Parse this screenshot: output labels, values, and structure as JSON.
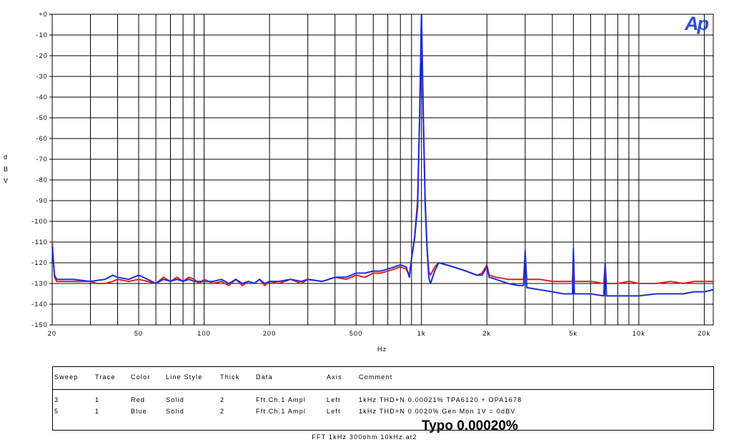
{
  "chart_data": {
    "type": "line",
    "xlabel": "Hz",
    "ylabel": "dBV",
    "xscale": "log",
    "xlim": [
      20,
      22000
    ],
    "ylim": [
      -150,
      0
    ],
    "grid": true,
    "yticks": [
      "+0",
      "-10",
      "-20",
      "-30",
      "-40",
      "-50",
      "-60",
      "-70",
      "-80",
      "-90",
      "-100",
      "-110",
      "-120",
      "-130",
      "-140",
      "-150"
    ],
    "xticks": [
      {
        "value": 20,
        "label": "20"
      },
      {
        "value": 50,
        "label": "50"
      },
      {
        "value": 100,
        "label": "100"
      },
      {
        "value": 200,
        "label": "200"
      },
      {
        "value": 500,
        "label": "500"
      },
      {
        "value": 1000,
        "label": "1k"
      },
      {
        "value": 2000,
        "label": "2k"
      },
      {
        "value": 5000,
        "label": "5k"
      },
      {
        "value": 10000,
        "label": "10k"
      },
      {
        "value": 20000,
        "label": "20k"
      }
    ],
    "series": [
      {
        "color": "#e02020",
        "points": [
          [
            20,
            -110
          ],
          [
            20.5,
            -127
          ],
          [
            21,
            -129
          ],
          [
            25,
            -129
          ],
          [
            30,
            -129
          ],
          [
            32,
            -130
          ],
          [
            35,
            -130
          ],
          [
            38,
            -129
          ],
          [
            40,
            -128
          ],
          [
            45,
            -129
          ],
          [
            50,
            -128
          ],
          [
            55,
            -129
          ],
          [
            60,
            -130
          ],
          [
            65,
            -127
          ],
          [
            70,
            -129
          ],
          [
            75,
            -127
          ],
          [
            80,
            -129
          ],
          [
            85,
            -127
          ],
          [
            90,
            -128
          ],
          [
            95,
            -130
          ],
          [
            100,
            -128
          ],
          [
            110,
            -130
          ],
          [
            120,
            -129
          ],
          [
            130,
            -131
          ],
          [
            140,
            -128
          ],
          [
            150,
            -131
          ],
          [
            160,
            -129
          ],
          [
            170,
            -130
          ],
          [
            180,
            -128
          ],
          [
            190,
            -131
          ],
          [
            200,
            -129
          ],
          [
            220,
            -130
          ],
          [
            250,
            -128
          ],
          [
            280,
            -130
          ],
          [
            300,
            -128
          ],
          [
            350,
            -129
          ],
          [
            400,
            -127
          ],
          [
            450,
            -128
          ],
          [
            500,
            -126
          ],
          [
            550,
            -127
          ],
          [
            600,
            -125
          ],
          [
            650,
            -125
          ],
          [
            700,
            -124
          ],
          [
            750,
            -123
          ],
          [
            800,
            -122
          ],
          [
            850,
            -123
          ],
          [
            880,
            -126
          ],
          [
            900,
            -118
          ],
          [
            930,
            -108
          ],
          [
            960,
            -90
          ],
          [
            980,
            -50
          ],
          [
            1000,
            0
          ],
          [
            1020,
            -50
          ],
          [
            1040,
            -90
          ],
          [
            1060,
            -112
          ],
          [
            1080,
            -124
          ],
          [
            1100,
            -126
          ],
          [
            1150,
            -122
          ],
          [
            1200,
            -120
          ],
          [
            1300,
            -121
          ],
          [
            1400,
            -122
          ],
          [
            1500,
            -123
          ],
          [
            1600,
            -124
          ],
          [
            1700,
            -125
          ],
          [
            1800,
            -126
          ],
          [
            1900,
            -125
          ],
          [
            2000,
            -121
          ],
          [
            2050,
            -126
          ],
          [
            2200,
            -127
          ],
          [
            2500,
            -128
          ],
          [
            2800,
            -128
          ],
          [
            2950,
            -128
          ],
          [
            3000,
            -116
          ],
          [
            3050,
            -128
          ],
          [
            3500,
            -128
          ],
          [
            4000,
            -129
          ],
          [
            4500,
            -129
          ],
          [
            4950,
            -129
          ],
          [
            5000,
            -116
          ],
          [
            5050,
            -129
          ],
          [
            6000,
            -129
          ],
          [
            6900,
            -130
          ],
          [
            7000,
            -121
          ],
          [
            7100,
            -130
          ],
          [
            8000,
            -130
          ],
          [
            9000,
            -129
          ],
          [
            10000,
            -130
          ],
          [
            12000,
            -130
          ],
          [
            14000,
            -129
          ],
          [
            16000,
            -130
          ],
          [
            18000,
            -129
          ],
          [
            20000,
            -129
          ],
          [
            22000,
            -129
          ]
        ]
      },
      {
        "color": "#1a2ee0",
        "points": [
          [
            20,
            -112
          ],
          [
            20.5,
            -126
          ],
          [
            21,
            -128
          ],
          [
            25,
            -128
          ],
          [
            30,
            -129
          ],
          [
            35,
            -128
          ],
          [
            38,
            -126
          ],
          [
            40,
            -127
          ],
          [
            45,
            -128
          ],
          [
            50,
            -126
          ],
          [
            55,
            -128
          ],
          [
            60,
            -130
          ],
          [
            65,
            -128
          ],
          [
            70,
            -129
          ],
          [
            75,
            -128
          ],
          [
            80,
            -129
          ],
          [
            85,
            -128
          ],
          [
            90,
            -129
          ],
          [
            95,
            -129
          ],
          [
            100,
            -129
          ],
          [
            110,
            -129
          ],
          [
            120,
            -128
          ],
          [
            130,
            -130
          ],
          [
            140,
            -128
          ],
          [
            150,
            -130
          ],
          [
            160,
            -129
          ],
          [
            170,
            -130
          ],
          [
            180,
            -128
          ],
          [
            190,
            -130
          ],
          [
            200,
            -129
          ],
          [
            220,
            -129
          ],
          [
            250,
            -128
          ],
          [
            280,
            -129
          ],
          [
            300,
            -128
          ],
          [
            350,
            -129
          ],
          [
            400,
            -127
          ],
          [
            450,
            -127
          ],
          [
            500,
            -125
          ],
          [
            550,
            -125
          ],
          [
            600,
            -124
          ],
          [
            650,
            -124
          ],
          [
            700,
            -123
          ],
          [
            750,
            -122
          ],
          [
            800,
            -121
          ],
          [
            850,
            -122
          ],
          [
            880,
            -127
          ],
          [
            900,
            -118
          ],
          [
            930,
            -108
          ],
          [
            960,
            -93
          ],
          [
            980,
            -50
          ],
          [
            1000,
            0
          ],
          [
            1020,
            -50
          ],
          [
            1040,
            -92
          ],
          [
            1060,
            -112
          ],
          [
            1080,
            -127
          ],
          [
            1100,
            -130
          ],
          [
            1150,
            -124
          ],
          [
            1200,
            -120
          ],
          [
            1300,
            -121
          ],
          [
            1400,
            -122
          ],
          [
            1500,
            -123
          ],
          [
            1600,
            -124
          ],
          [
            1700,
            -125
          ],
          [
            1800,
            -126
          ],
          [
            1900,
            -126
          ],
          [
            2000,
            -122
          ],
          [
            2050,
            -127
          ],
          [
            2200,
            -128
          ],
          [
            2500,
            -130
          ],
          [
            2800,
            -131
          ],
          [
            2950,
            -131
          ],
          [
            3000,
            -114
          ],
          [
            3050,
            -132
          ],
          [
            3500,
            -133
          ],
          [
            4000,
            -134
          ],
          [
            4500,
            -135
          ],
          [
            4950,
            -135
          ],
          [
            5000,
            -113
          ],
          [
            5050,
            -135
          ],
          [
            6000,
            -135
          ],
          [
            6900,
            -136
          ],
          [
            7000,
            -120
          ],
          [
            7100,
            -136
          ],
          [
            8000,
            -136
          ],
          [
            9000,
            -136
          ],
          [
            10000,
            -136
          ],
          [
            12000,
            -135
          ],
          [
            14000,
            -135
          ],
          [
            16000,
            -135
          ],
          [
            18000,
            -134
          ],
          [
            20000,
            -134
          ],
          [
            22000,
            -133
          ]
        ]
      }
    ]
  },
  "logo_text": "Ap",
  "legend": {
    "headers": [
      "Sweep",
      "Trace",
      "Color",
      "Line Style",
      "Thick",
      "Data",
      "Axis",
      "Comment"
    ],
    "rows": [
      [
        "3",
        "1",
        "Red",
        "Solid",
        "2",
        "Fft.Ch.1 Ampl",
        "Left",
        "1kHz THD+N 0.00021% TPA6120 + OPA1678"
      ],
      [
        "5",
        "1",
        "Blue",
        "Solid",
        "2",
        "Fft.Ch.1 Ampl",
        "Left",
        "1kHz THD+N 0.0020% Gen Mon 1V = 0dBV"
      ]
    ]
  },
  "note": "Typo 0.00020%",
  "footer": "FFT 1kHz 300ohm 10kHz.at2"
}
